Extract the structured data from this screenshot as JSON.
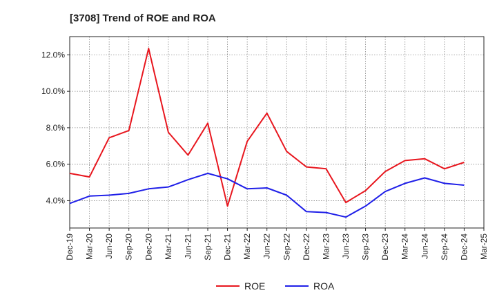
{
  "chart_data": {
    "type": "line",
    "title": "[3708]  Trend of ROE and ROA",
    "xlabel": "",
    "ylabel": "",
    "categories": [
      "Dec-19",
      "Mar-20",
      "Jun-20",
      "Sep-20",
      "Dec-20",
      "Mar-21",
      "Jun-21",
      "Sep-21",
      "Dec-21",
      "Mar-22",
      "Jun-22",
      "Sep-22",
      "Dec-22",
      "Mar-23",
      "Jun-23",
      "Sep-23",
      "Dec-23",
      "Mar-24",
      "Jun-24",
      "Sep-24",
      "Dec-24",
      "Mar-25"
    ],
    "ylim": [
      2.5,
      13.0
    ],
    "yticks": [
      4.0,
      6.0,
      8.0,
      10.0,
      12.0
    ],
    "ytick_labels": [
      "4.0%",
      "6.0%",
      "8.0%",
      "10.0%",
      "12.0%"
    ],
    "grid": true,
    "legend_position": "bottom",
    "series": [
      {
        "name": "ROE",
        "color": "#e8161e",
        "values": [
          5.5,
          5.3,
          7.45,
          7.85,
          12.35,
          7.75,
          6.5,
          8.25,
          3.7,
          7.25,
          8.8,
          6.7,
          5.85,
          5.75,
          3.9,
          4.55,
          5.6,
          6.2,
          6.3,
          5.75,
          6.1,
          null
        ]
      },
      {
        "name": "ROA",
        "color": "#1f1fe8",
        "values": [
          3.85,
          4.25,
          4.3,
          4.4,
          4.65,
          4.75,
          5.15,
          5.5,
          5.2,
          4.65,
          4.7,
          4.3,
          3.4,
          3.35,
          3.1,
          3.7,
          4.5,
          4.95,
          5.25,
          4.95,
          4.85,
          null
        ]
      }
    ]
  }
}
